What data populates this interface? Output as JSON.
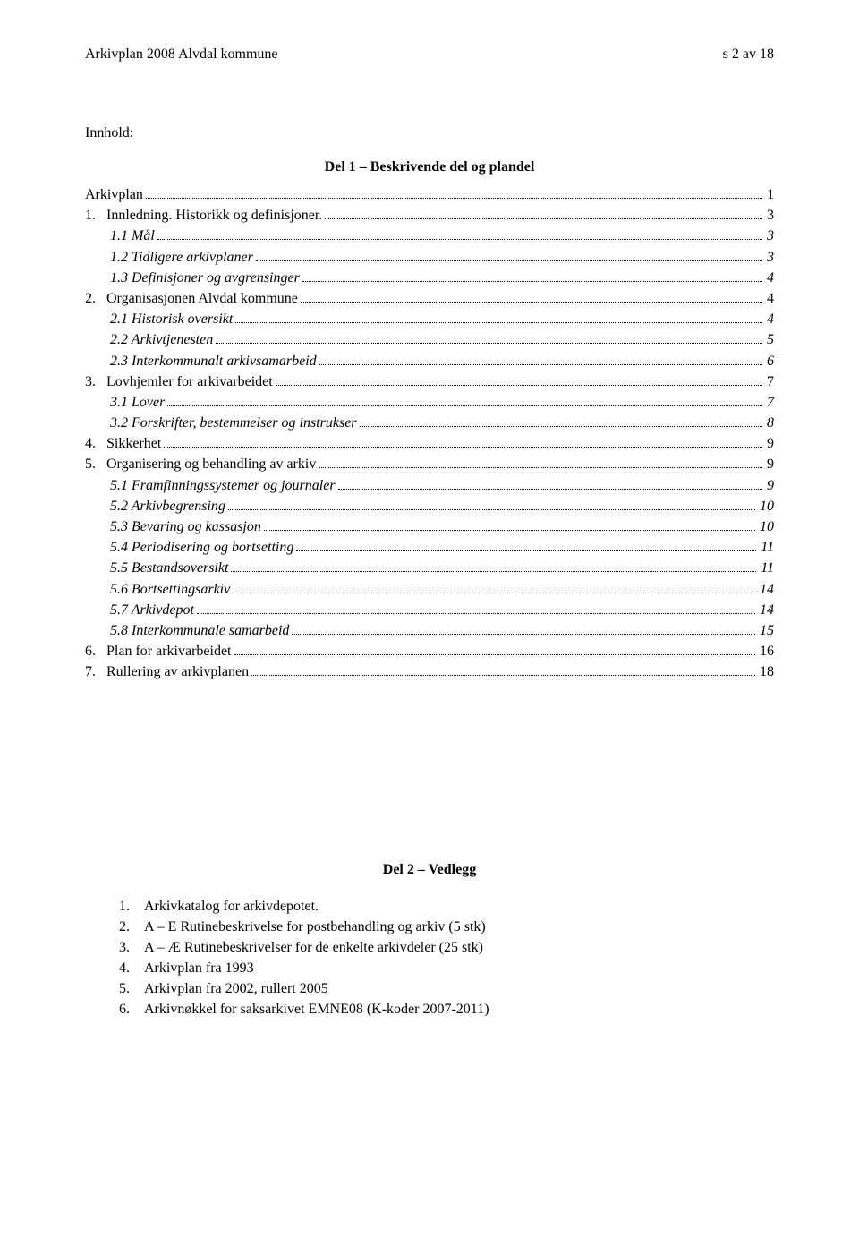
{
  "header": {
    "left": "Arkivplan 2008 Alvdal kommune",
    "right": "s 2 av 18"
  },
  "innhold_label": "Innhold:",
  "del1_title": "Del 1 – Beskrivende del og plandel",
  "toc": [
    {
      "label": "Arkivplan",
      "page": "1",
      "indent": 1,
      "italic": false
    },
    {
      "label": "1.   Innledning. Historikk og definisjoner.",
      "page": "3",
      "indent": 1,
      "italic": false
    },
    {
      "label": "1.1 Mål",
      "page": "3",
      "indent": 2,
      "italic": true
    },
    {
      "label": "1.2 Tidligere arkivplaner",
      "page": "3",
      "indent": 2,
      "italic": true
    },
    {
      "label": "1.3 Definisjoner og avgrensinger",
      "page": "4",
      "indent": 2,
      "italic": true
    },
    {
      "label": "2.   Organisasjonen Alvdal kommune",
      "page": "4",
      "indent": 1,
      "italic": false
    },
    {
      "label": "2.1 Historisk oversikt",
      "page": "4",
      "indent": 2,
      "italic": true
    },
    {
      "label": "2.2 Arkivtjenesten",
      "page": "5",
      "indent": 2,
      "italic": true
    },
    {
      "label": "2.3 Interkommunalt arkivsamarbeid",
      "page": "6",
      "indent": 2,
      "italic": true
    },
    {
      "label": "3.   Lovhjemler for arkivarbeidet",
      "page": "7",
      "indent": 1,
      "italic": false
    },
    {
      "label": "3.1 Lover",
      "page": "7",
      "indent": 2,
      "italic": true
    },
    {
      "label": "3.2 Forskrifter, bestemmelser og instrukser",
      "page": "8",
      "indent": 2,
      "italic": true
    },
    {
      "label": "4.   Sikkerhet",
      "page": "9",
      "indent": 1,
      "italic": false
    },
    {
      "label": "5.   Organisering og behandling av arkiv",
      "page": "9",
      "indent": 1,
      "italic": false
    },
    {
      "label": "5.1 Framfinningssystemer og journaler",
      "page": "9",
      "indent": 2,
      "italic": true
    },
    {
      "label": "5.2 Arkivbegrensing",
      "page": "10",
      "indent": 2,
      "italic": true
    },
    {
      "label": "5.3 Bevaring og kassasjon",
      "page": "10",
      "indent": 2,
      "italic": true
    },
    {
      "label": "5.4 Periodisering og bortsetting",
      "page": "11",
      "indent": 2,
      "italic": true
    },
    {
      "label": "5.5 Bestandsoversikt",
      "page": "11",
      "indent": 2,
      "italic": true
    },
    {
      "label": "5.6 Bortsettingsarkiv",
      "page": "14",
      "indent": 2,
      "italic": true
    },
    {
      "label": "5.7 Arkivdepot",
      "page": "14",
      "indent": 2,
      "italic": true
    },
    {
      "label": "5.8 Interkommunale samarbeid",
      "page": "15",
      "indent": 2,
      "italic": true
    },
    {
      "label": "6.   Plan for arkivarbeidet",
      "page": "16",
      "indent": 1,
      "italic": false
    },
    {
      "label": "7.   Rullering av arkivplanen",
      "page": "18",
      "indent": 1,
      "italic": false
    }
  ],
  "del2_title": "Del 2 – Vedlegg",
  "vedlegg": [
    {
      "num": "1.",
      "text": "Arkivkatalog for arkivdepotet."
    },
    {
      "num": "2.",
      "text": "A – E Rutinebeskrivelse for postbehandling og arkiv (5 stk)"
    },
    {
      "num": "3.",
      "text": "A – Æ Rutinebeskrivelser for de enkelte arkivdeler (25 stk)"
    },
    {
      "num": "4.",
      "text": "Arkivplan fra 1993"
    },
    {
      "num": "5.",
      "text": "Arkivplan fra 2002, rullert 2005"
    },
    {
      "num": "6.",
      "text": "Arkivnøkkel for saksarkivet EMNE08 (K-koder 2007-2011)"
    }
  ]
}
